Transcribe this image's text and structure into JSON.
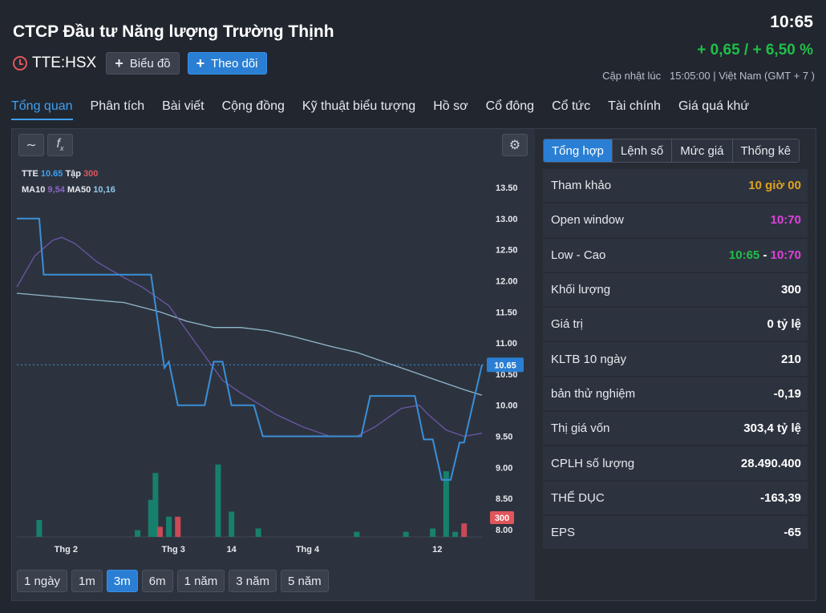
{
  "header": {
    "company": "CTCP Đầu tư Năng lượng Trường Thịnh",
    "ticker": "TTE:HSX",
    "chart_button": "Biểu đồ",
    "follow_button": "Theo dõi",
    "price": "10:65",
    "change": "+ 0,65 / + 6,50 %",
    "update_label": "Cập nhật lúc",
    "update_time": "15:05:00 | Việt Nam (GMT + 7 )"
  },
  "nav": [
    "Tổng quan",
    "Phân tích",
    "Bài viết",
    "Cộng đồng",
    "Kỹ thuật biểu tượng",
    "Hồ sơ",
    "Cổ đông",
    "Cổ tức",
    "Tài chính",
    "Giá quá khứ"
  ],
  "legend": {
    "tte_label": "TTE",
    "tte_value": "10.65",
    "vol_label": "Tập",
    "vol_value": "300",
    "ma10_label": "MA10",
    "ma10_value": "9,54",
    "ma50_label": "MA50",
    "ma50_value": "10,16"
  },
  "ranges": [
    "1 ngày",
    "1m",
    "3m",
    "6m",
    "1 năm",
    "3 năm",
    "5 năm"
  ],
  "side_tabs": [
    "Tổng hợp",
    "Lệnh số",
    "Mức giá",
    "Thống kê"
  ],
  "stats": [
    {
      "label": "Tham khảo",
      "value": "10 giờ 00"
    },
    {
      "label": "Open window",
      "value": "10:70"
    },
    {
      "label": "Low - Cao",
      "low": "10:65",
      "sep": "-",
      "high": "10:70"
    },
    {
      "label": "Khối lượng",
      "value": "300"
    },
    {
      "label": "Giá trị",
      "value": "0 tỷ lệ"
    },
    {
      "label": "KLTB 10 ngày",
      "value": "210"
    },
    {
      "label": "bản thử nghiệm",
      "value": "-0,19"
    },
    {
      "label": "Thị giá vốn",
      "value": "303,4 tỷ lệ"
    },
    {
      "label": "CPLH số lượng",
      "value": "28.490.400"
    },
    {
      "label": "THỂ DỤC",
      "value": "-163,39"
    },
    {
      "label": "EPS",
      "value": "-65"
    }
  ],
  "colors": {
    "accent": "#2a7fd4",
    "up": "#1fbf49",
    "down": "#e0565b",
    "price_line": "#3a8fd8",
    "ma10": "#6b56a8",
    "ma50": "#8fb8cc",
    "vol_up": "#17806d",
    "vol_down": "#c94a56",
    "ref": "#e0a21d",
    "ceil": "#e040e0"
  },
  "chart_data": {
    "type": "line",
    "y_ticks": [
      "13.50",
      "13.00",
      "12.50",
      "12.00",
      "11.50",
      "11.00",
      "10.50",
      "10.00",
      "9.50",
      "9.00",
      "8.50",
      "8.00"
    ],
    "x_ticks": [
      "Thg 2",
      "Thg 3",
      "14",
      "Thg 4",
      "12"
    ],
    "ylim": [
      8.0,
      13.5
    ],
    "last_price_label": "10.65",
    "last_volume_label": "300",
    "price": [
      [
        0,
        13.0
      ],
      [
        5,
        13.0
      ],
      [
        6,
        12.1
      ],
      [
        30,
        12.1
      ],
      [
        33,
        10.6
      ],
      [
        34,
        10.7
      ],
      [
        36,
        10.0
      ],
      [
        42,
        10.0
      ],
      [
        44,
        10.7
      ],
      [
        46,
        10.7
      ],
      [
        48,
        10.0
      ],
      [
        53,
        10.0
      ],
      [
        55,
        9.5
      ],
      [
        77,
        9.5
      ],
      [
        79,
        10.15
      ],
      [
        89,
        10.15
      ],
      [
        91,
        9.45
      ],
      [
        93,
        9.45
      ],
      [
        95,
        8.8
      ],
      [
        97,
        8.8
      ],
      [
        99,
        9.4
      ],
      [
        100,
        9.4
      ],
      [
        104,
        10.65
      ]
    ],
    "ma10": [
      [
        0,
        11.9
      ],
      [
        4,
        12.4
      ],
      [
        8,
        12.65
      ],
      [
        10,
        12.7
      ],
      [
        13,
        12.6
      ],
      [
        18,
        12.3
      ],
      [
        24,
        12.05
      ],
      [
        28,
        11.9
      ],
      [
        34,
        11.6
      ],
      [
        38,
        11.2
      ],
      [
        42,
        10.8
      ],
      [
        46,
        10.4
      ],
      [
        50,
        10.2
      ],
      [
        58,
        9.85
      ],
      [
        64,
        9.65
      ],
      [
        70,
        9.5
      ],
      [
        76,
        9.5
      ],
      [
        80,
        9.65
      ],
      [
        86,
        9.95
      ],
      [
        90,
        10.0
      ],
      [
        92,
        9.85
      ],
      [
        96,
        9.6
      ],
      [
        100,
        9.5
      ],
      [
        104,
        9.55
      ]
    ],
    "ma50": [
      [
        0,
        11.8
      ],
      [
        8,
        11.75
      ],
      [
        16,
        11.7
      ],
      [
        24,
        11.65
      ],
      [
        32,
        11.5
      ],
      [
        38,
        11.35
      ],
      [
        44,
        11.25
      ],
      [
        50,
        11.25
      ],
      [
        56,
        11.2
      ],
      [
        62,
        11.1
      ],
      [
        70,
        10.95
      ],
      [
        76,
        10.85
      ],
      [
        82,
        10.7
      ],
      [
        88,
        10.55
      ],
      [
        94,
        10.4
      ],
      [
        100,
        10.25
      ],
      [
        104,
        10.16
      ]
    ],
    "volume": [
      [
        5,
        0,
        1
      ],
      [
        27,
        0,
        0.4
      ],
      [
        30,
        0,
        2.2
      ],
      [
        31,
        0,
        3.8
      ],
      [
        32,
        1,
        0.6
      ],
      [
        34,
        0,
        1.2
      ],
      [
        36,
        1,
        1.2
      ],
      [
        45,
        0,
        4.3
      ],
      [
        48,
        0,
        1.5
      ],
      [
        54,
        0,
        0.5
      ],
      [
        76,
        0,
        0.3
      ],
      [
        87,
        0,
        0.3
      ],
      [
        93,
        0,
        0.5
      ],
      [
        96,
        0,
        3.9
      ],
      [
        98,
        0,
        0.3
      ],
      [
        100,
        1,
        0.8
      ]
    ]
  }
}
